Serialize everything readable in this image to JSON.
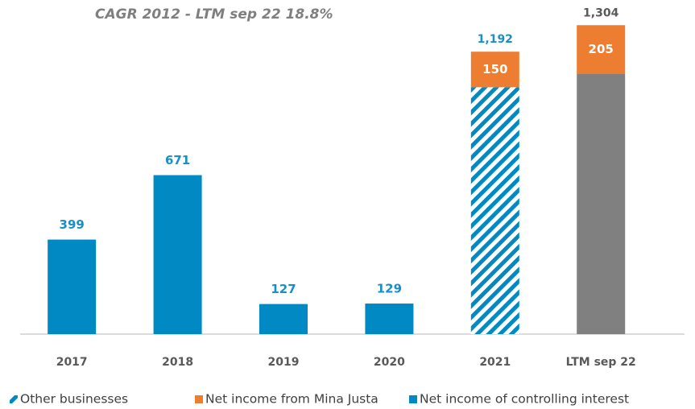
{
  "chart_data": {
    "type": "stacked_bar",
    "title": "CAGR 2012 - LTM sep 22  18.8%",
    "categories": [
      "2017",
      "2018",
      "2019",
      "2020",
      "2021",
      "LTM sep 22"
    ],
    "series": [
      {
        "name": "Other businesses",
        "color": "#0089c3",
        "values": [
          null,
          null,
          null,
          null,
          1042,
          1099
        ],
        "point_fills": [
          null,
          null,
          null,
          null,
          "hatch",
          "#808080"
        ]
      },
      {
        "name": "Net income from Mina Justa",
        "color": "#ed7d31",
        "values": [
          null,
          null,
          null,
          null,
          150,
          205
        ],
        "label_color": "#ffffff"
      },
      {
        "name": "Net income of controlling interest",
        "color": "#0089c3",
        "values": [
          399,
          671,
          127,
          129,
          null,
          null
        ],
        "label_color": "#1a8fc7"
      }
    ],
    "totals": [
      null,
      null,
      null,
      null,
      1192,
      1304
    ],
    "total_labels": [
      null,
      null,
      null,
      null,
      "1,192",
      "1,304"
    ],
    "total_colors": [
      null,
      null,
      null,
      null,
      "#1a8fc7",
      "#595959"
    ],
    "ylim": [
      0,
      1400
    ]
  }
}
